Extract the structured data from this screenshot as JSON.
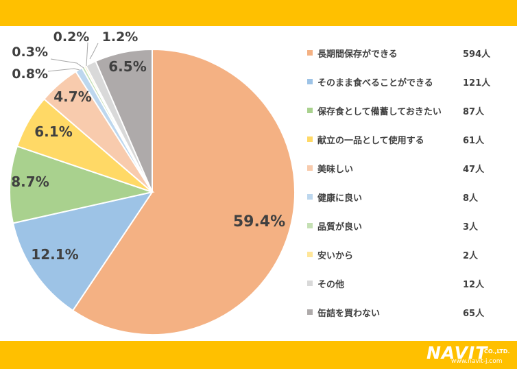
{
  "chart_data": {
    "type": "pie",
    "start_angle_deg": 0,
    "direction": "clockwise",
    "slices": [
      {
        "label": "長期間保存ができる",
        "count_label": "594人",
        "value": 594,
        "percent_label": "59.4%",
        "color": "#F4B183"
      },
      {
        "label": "そのまま食べることができる",
        "count_label": "121人",
        "value": 121,
        "percent_label": "12.1%",
        "color": "#9DC3E6"
      },
      {
        "label": "保存食として備蓄しておきたい",
        "count_label": "87人",
        "value": 87,
        "percent_label": "8.7%",
        "color": "#A9D18E"
      },
      {
        "label": "献立の一品として使用する",
        "count_label": "61人",
        "value": 61,
        "percent_label": "6.1%",
        "color": "#FFD966"
      },
      {
        "label": "美味しい",
        "count_label": "47人",
        "value": 47,
        "percent_label": "4.7%",
        "color": "#F8CBAD"
      },
      {
        "label": "健康に良い",
        "count_label": "8人",
        "value": 8,
        "percent_label": "0.8%",
        "color": "#BDD7EE"
      },
      {
        "label": "品質が良い",
        "count_label": "3人",
        "value": 3,
        "percent_label": "0.3%",
        "color": "#C5E0B4"
      },
      {
        "label": "安いから",
        "count_label": "2人",
        "value": 2,
        "percent_label": "0.2%",
        "color": "#FFE699"
      },
      {
        "label": "その他",
        "count_label": "12人",
        "value": 12,
        "percent_label": "1.2%",
        "color": "#D9D9D9"
      },
      {
        "label": "缶詰を買わない",
        "count_label": "65人",
        "value": 65,
        "percent_label": "6.5%",
        "color": "#AEAAAA"
      }
    ]
  },
  "logo": {
    "main": "NAVIT",
    "company_suffix": "CO.,LTD.",
    "url": "www.navit-j.com"
  },
  "colors": {
    "band": "#FFC000",
    "text": "#404040",
    "slice_border": "#ffffff"
  }
}
